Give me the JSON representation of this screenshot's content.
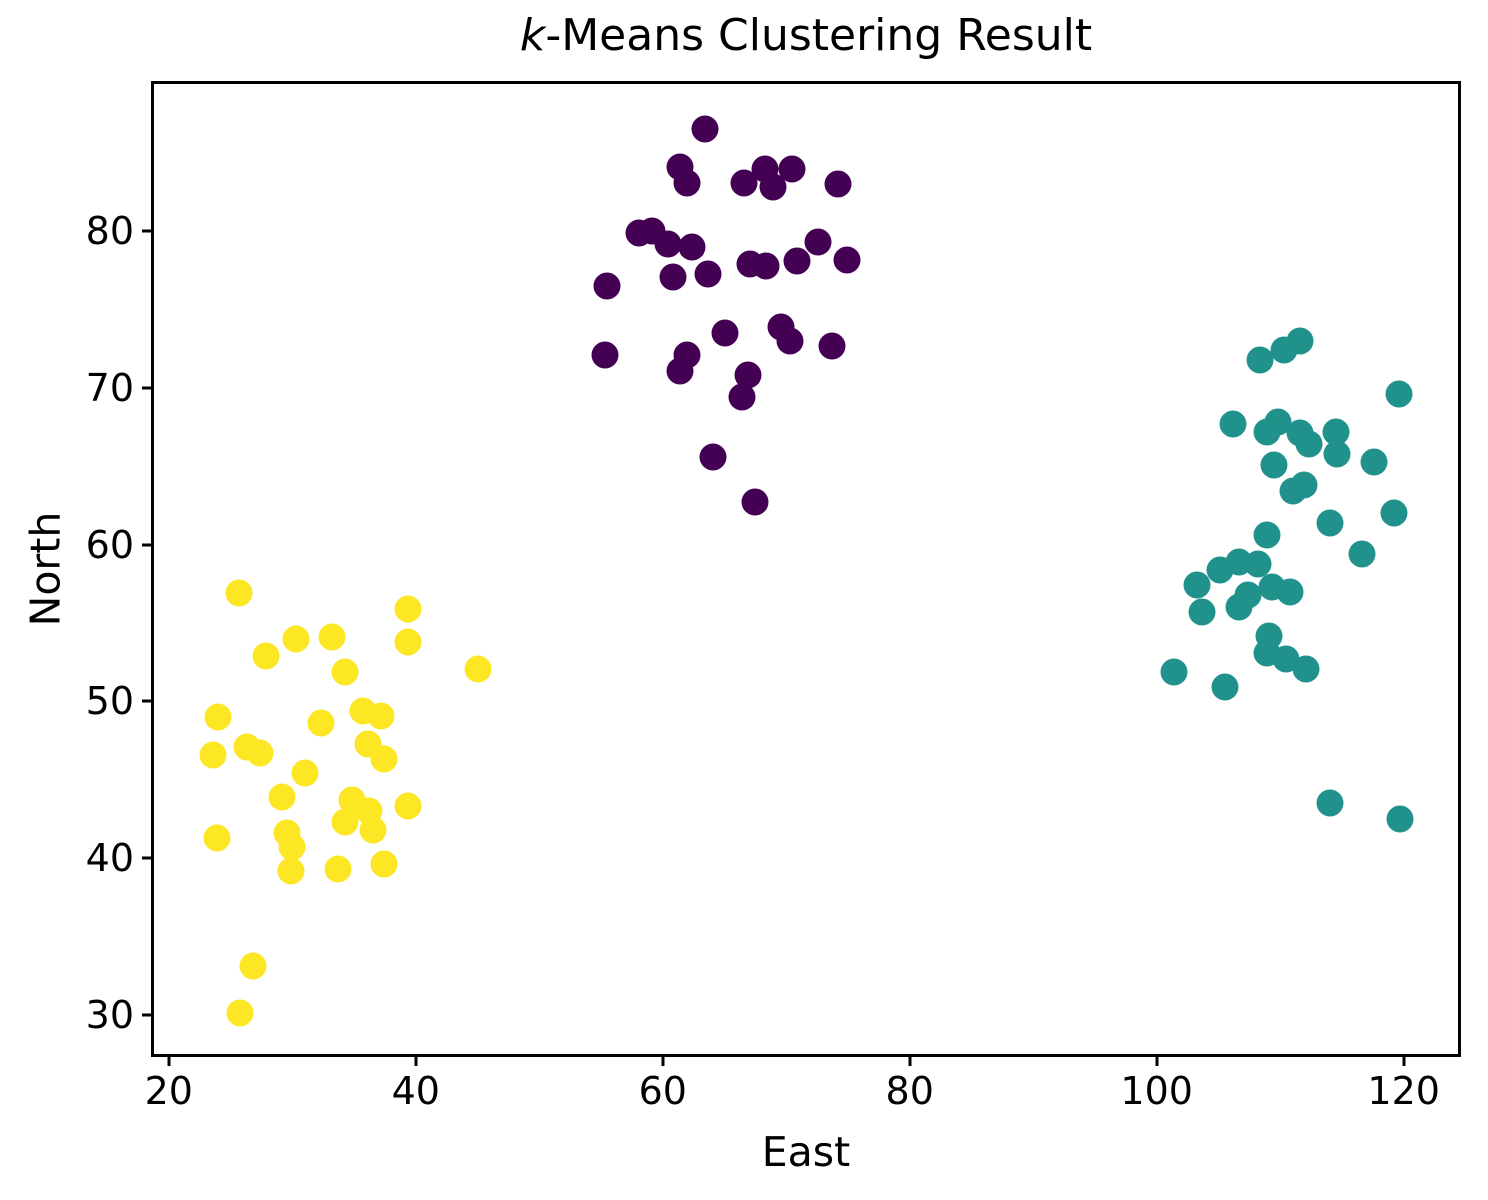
{
  "chart_data": {
    "type": "scatter",
    "title": "k-Means Clustering Result",
    "title_italic": "k",
    "title_rest": "-Means Clustering Result",
    "xlabel": "East",
    "ylabel": "North",
    "xlim": [
      18.8,
      124.4
    ],
    "ylim": [
      27.5,
      89.4
    ],
    "xticks": [
      20,
      40,
      60,
      80,
      100,
      120
    ],
    "yticks": [
      30,
      40,
      50,
      60,
      70,
      80
    ],
    "grid": false,
    "legend": "none",
    "marker_diameter_px": 27,
    "axis_color": "#000000",
    "background_color": "#ffffff",
    "series": [
      {
        "name": "cluster-yellow",
        "color": "#fde725",
        "points": [
          [
            25.7,
            56.9
          ],
          [
            39.4,
            55.9
          ],
          [
            39.4,
            53.8
          ],
          [
            30.3,
            54.0
          ],
          [
            33.2,
            54.1
          ],
          [
            27.9,
            52.9
          ],
          [
            34.3,
            51.9
          ],
          [
            45.0,
            52.1
          ],
          [
            24.0,
            49.0
          ],
          [
            32.3,
            48.6
          ],
          [
            35.7,
            49.4
          ],
          [
            37.2,
            49.1
          ],
          [
            23.6,
            46.6
          ],
          [
            26.3,
            47.1
          ],
          [
            27.4,
            46.7
          ],
          [
            36.1,
            47.3
          ],
          [
            37.4,
            46.3
          ],
          [
            31.0,
            45.4
          ],
          [
            29.2,
            43.9
          ],
          [
            34.8,
            43.7
          ],
          [
            36.2,
            43.0
          ],
          [
            39.4,
            43.3
          ],
          [
            23.9,
            41.3
          ],
          [
            29.6,
            41.6
          ],
          [
            30.0,
            40.7
          ],
          [
            34.3,
            42.3
          ],
          [
            36.5,
            41.8
          ],
          [
            37.4,
            39.6
          ],
          [
            29.9,
            39.2
          ],
          [
            33.7,
            39.3
          ],
          [
            26.8,
            33.1
          ],
          [
            25.8,
            30.1
          ]
        ]
      },
      {
        "name": "cluster-purple",
        "color": "#440154",
        "points": [
          [
            63.4,
            86.5
          ],
          [
            61.4,
            84.1
          ],
          [
            62.0,
            83.1
          ],
          [
            66.6,
            83.1
          ],
          [
            68.3,
            84.0
          ],
          [
            68.9,
            82.8
          ],
          [
            70.5,
            84.0
          ],
          [
            74.2,
            83.0
          ],
          [
            58.1,
            79.9
          ],
          [
            59.1,
            80.0
          ],
          [
            60.4,
            79.2
          ],
          [
            62.4,
            79.0
          ],
          [
            72.6,
            79.3
          ],
          [
            70.9,
            78.1
          ],
          [
            74.9,
            78.2
          ],
          [
            67.1,
            77.9
          ],
          [
            68.4,
            77.8
          ],
          [
            60.8,
            77.1
          ],
          [
            63.7,
            77.3
          ],
          [
            55.5,
            76.5
          ],
          [
            65.0,
            73.5
          ],
          [
            69.6,
            73.9
          ],
          [
            70.3,
            73.0
          ],
          [
            73.7,
            72.7
          ],
          [
            55.3,
            72.1
          ],
          [
            62.0,
            72.1
          ],
          [
            61.4,
            71.1
          ],
          [
            66.9,
            70.8
          ],
          [
            66.4,
            69.4
          ],
          [
            64.1,
            65.6
          ],
          [
            67.5,
            62.7
          ]
        ]
      },
      {
        "name": "cluster-teal",
        "color": "#21918c",
        "points": [
          [
            108.4,
            71.8
          ],
          [
            110.3,
            72.4
          ],
          [
            111.6,
            73.0
          ],
          [
            119.6,
            69.6
          ],
          [
            106.2,
            67.7
          ],
          [
            109.8,
            67.8
          ],
          [
            108.9,
            67.2
          ],
          [
            111.6,
            67.1
          ],
          [
            112.3,
            66.4
          ],
          [
            114.5,
            67.2
          ],
          [
            114.6,
            65.8
          ],
          [
            117.6,
            65.3
          ],
          [
            109.5,
            65.1
          ],
          [
            111.9,
            63.8
          ],
          [
            111.0,
            63.4
          ],
          [
            119.2,
            62.0
          ],
          [
            114.0,
            61.4
          ],
          [
            108.9,
            60.6
          ],
          [
            116.6,
            59.4
          ],
          [
            105.1,
            58.4
          ],
          [
            106.7,
            58.9
          ],
          [
            108.2,
            58.8
          ],
          [
            103.3,
            57.4
          ],
          [
            103.7,
            55.7
          ],
          [
            107.4,
            56.8
          ],
          [
            109.3,
            57.3
          ],
          [
            110.8,
            57.0
          ],
          [
            106.7,
            56.0
          ],
          [
            109.1,
            54.2
          ],
          [
            108.9,
            53.1
          ],
          [
            110.5,
            52.7
          ],
          [
            112.1,
            52.1
          ],
          [
            101.4,
            51.9
          ],
          [
            105.5,
            50.9
          ],
          [
            114.0,
            43.5
          ],
          [
            119.7,
            42.5
          ]
        ]
      }
    ]
  }
}
